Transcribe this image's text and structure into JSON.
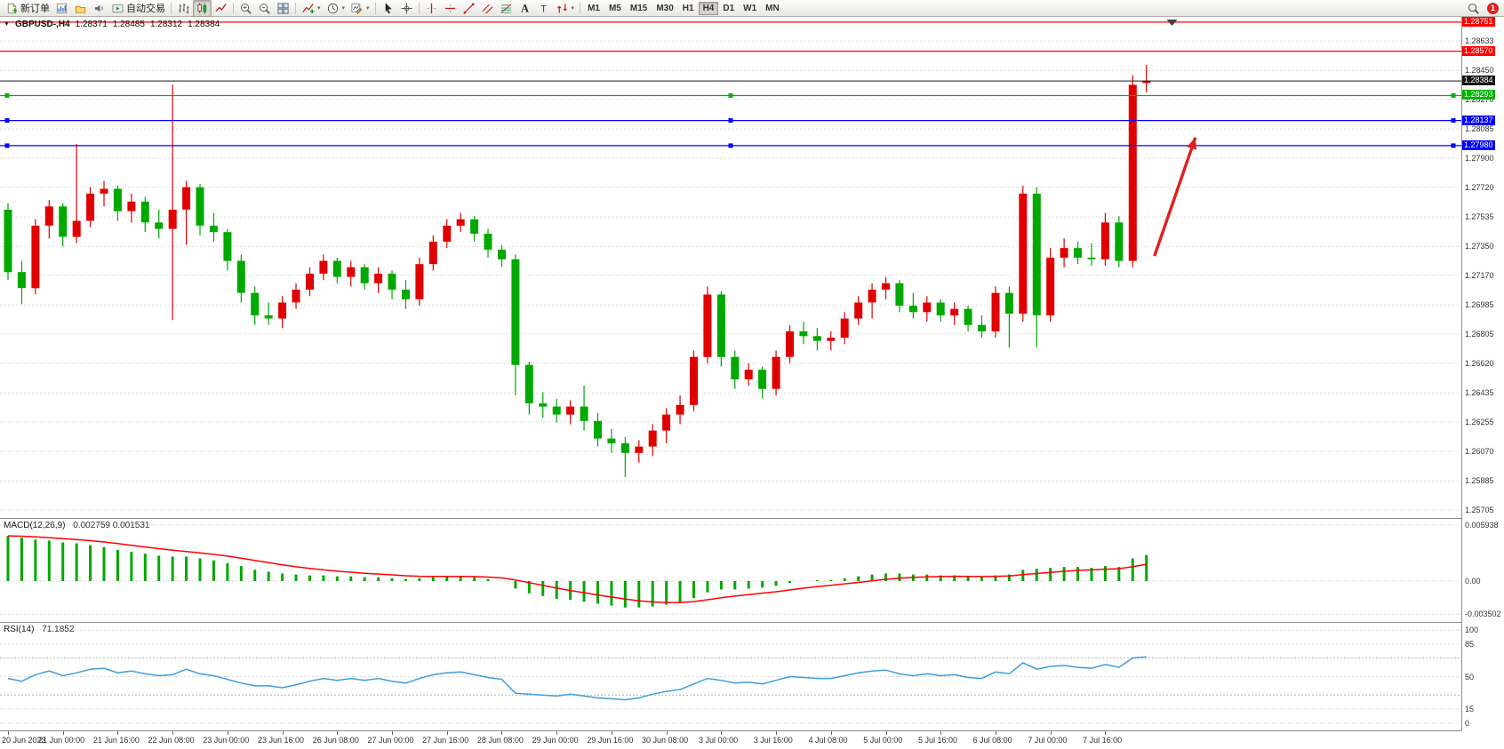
{
  "toolbar": {
    "left_items": [
      {
        "name": "new-order",
        "icon": "new-order-icon",
        "label": "新订单"
      },
      {
        "name": "charts",
        "icon": "charts-icon"
      },
      {
        "name": "profiles",
        "icon": "profiles-icon"
      },
      {
        "name": "sound-alerts",
        "icon": "sound-icon"
      },
      {
        "name": "autotrading",
        "icon": "autotrading-icon",
        "label": "自动交易"
      },
      {
        "sep": true
      },
      {
        "name": "bar-chart-mode",
        "icon": "bar-chart-icon"
      },
      {
        "name": "candlestick-mode",
        "icon": "candlestick-icon",
        "active": true
      },
      {
        "name": "line-chart-mode",
        "icon": "line-chart-icon"
      },
      {
        "sep": true
      },
      {
        "name": "zoom-in",
        "icon": "zoom-in-icon"
      },
      {
        "name": "zoom-out",
        "icon": "zoom-out-icon"
      },
      {
        "name": "tile-windows",
        "icon": "tile-windows-icon"
      },
      {
        "sep": true
      },
      {
        "name": "indicators",
        "icon": "indicators-icon",
        "caret": true
      },
      {
        "name": "periods",
        "icon": "periods-icon",
        "caret": true
      },
      {
        "name": "templates",
        "icon": "templates-icon",
        "caret": true
      },
      {
        "sep": true
      },
      {
        "name": "cursor",
        "icon": "cursor-icon"
      },
      {
        "name": "crosshair",
        "icon": "crosshair-icon"
      },
      {
        "sep": true
      },
      {
        "name": "vertical-line",
        "icon": "vertical-line-icon"
      },
      {
        "name": "horizontal-line",
        "icon": "horizontal-line-icon"
      },
      {
        "name": "trendline",
        "icon": "trendline-icon"
      },
      {
        "name": "equidistant-channel",
        "icon": "channel-icon"
      },
      {
        "name": "fibonacci",
        "icon": "fibonacci-icon"
      },
      {
        "name": "text",
        "icon": "text-icon"
      },
      {
        "name": "text-label",
        "icon": "label-icon"
      },
      {
        "name": "arrows",
        "icon": "arrows-icon",
        "caret": true
      },
      {
        "sep": true
      }
    ],
    "timeframes": [
      {
        "label": "M1"
      },
      {
        "label": "M5"
      },
      {
        "label": "M15"
      },
      {
        "label": "M30"
      },
      {
        "label": "H1"
      },
      {
        "label": "H4",
        "active": true
      },
      {
        "label": "D1"
      },
      {
        "label": "W1"
      },
      {
        "label": "MN"
      }
    ],
    "right_items": [
      {
        "name": "search",
        "icon": "magnifier-icon"
      }
    ],
    "notification_badge": "1"
  },
  "chart": {
    "symbol_period": "GBPUSD-,H4",
    "open": "1.28371",
    "high": "1.28485",
    "low": "1.28312",
    "close": "1.28384"
  },
  "chart_data": [
    {
      "type": "candlestick",
      "title": "GBPUSD-,H4",
      "timeframe": "H4",
      "up_color": "#e00000",
      "down_color": "#00a800",
      "ylim": [
        1.25654,
        1.28784
      ],
      "grid_labels": [
        "1.28633",
        "1.28450",
        "1.28270",
        "1.28085",
        "1.27900",
        "1.27720",
        "1.27535",
        "1.27350",
        "1.27170",
        "1.26985",
        "1.26805",
        "1.26620",
        "1.26435",
        "1.26255",
        "1.26070",
        "1.25885",
        "1.25705"
      ],
      "time_labels": [
        "20 Jun 2023",
        "21 Jun 00:00",
        "21 Jun 16:00",
        "22 Jun 08:00",
        "23 Jun 00:00",
        "23 Jun 16:00",
        "26 Jun 08:00",
        "27 Jun 00:00",
        "27 Jun 16:00",
        "28 Jun 08:00",
        "29 Jun 00:00",
        "29 Jun 16:00",
        "30 Jun 08:00",
        "3 Jul 00:00",
        "3 Jul 16:00",
        "4 Jul 08:00",
        "5 Jul 00:00",
        "5 Jul 16:00",
        "6 Jul 08:00",
        "7 Jul 00:00",
        "7 Jul 16:00"
      ],
      "label_step": 4,
      "price_lines": [
        {
          "price": 1.28751,
          "label": "1.28751",
          "color": "#ff0000",
          "handles": false
        },
        {
          "price": 1.2857,
          "label": "1.28570",
          "color": "#ff0000",
          "handles": false
        },
        {
          "price": 1.28384,
          "label": "1.28384",
          "color": "#101010",
          "type": "bid",
          "handles": false
        },
        {
          "price": 1.28293,
          "label": "1.28293",
          "color": "#00b400",
          "handles": true
        },
        {
          "price": 1.28137,
          "label": "1.28137",
          "color": "#0000ff",
          "handles": true
        },
        {
          "price": 1.2798,
          "label": "1.27980",
          "color": "#0000ff",
          "handles": true
        }
      ],
      "annotations": [
        {
          "type": "arrow",
          "color": "#e02020",
          "x1_frac": 0.79,
          "y1_price": 1.2729,
          "x2_frac": 0.818,
          "y2_price": 1.2803
        }
      ],
      "shift_marker_x_frac": 0.802,
      "candles": [
        [
          1.2758,
          1.2762,
          1.2714,
          1.2719
        ],
        [
          1.2719,
          1.2726,
          1.2699,
          1.2709
        ],
        [
          1.2709,
          1.2752,
          1.2705,
          1.2748
        ],
        [
          1.2748,
          1.2764,
          1.274,
          1.276
        ],
        [
          1.276,
          1.2762,
          1.2735,
          1.2741
        ],
        [
          1.2741,
          1.2799,
          1.2737,
          1.2751
        ],
        [
          1.2751,
          1.2772,
          1.2747,
          1.2768
        ],
        [
          1.2768,
          1.2776,
          1.276,
          1.2771
        ],
        [
          1.2771,
          1.2773,
          1.2751,
          1.2757
        ],
        [
          1.2757,
          1.2768,
          1.275,
          1.2763
        ],
        [
          1.2763,
          1.2766,
          1.2744,
          1.275
        ],
        [
          1.275,
          1.2758,
          1.274,
          1.2746
        ],
        [
          1.2746,
          1.2836,
          1.2689,
          1.2758
        ],
        [
          1.2758,
          1.2776,
          1.2736,
          1.2772
        ],
        [
          1.2772,
          1.2774,
          1.2742,
          1.2748
        ],
        [
          1.2748,
          1.2756,
          1.2738,
          1.2744
        ],
        [
          1.2744,
          1.2746,
          1.272,
          1.2726
        ],
        [
          1.2726,
          1.273,
          1.27,
          1.2706
        ],
        [
          1.2706,
          1.271,
          1.2686,
          1.2692
        ],
        [
          1.2692,
          1.27,
          1.2686,
          1.269
        ],
        [
          1.269,
          1.2704,
          1.2684,
          1.27
        ],
        [
          1.27,
          1.2712,
          1.2696,
          1.2708
        ],
        [
          1.2708,
          1.2722,
          1.2704,
          1.2718
        ],
        [
          1.2718,
          1.273,
          1.2714,
          1.2726
        ],
        [
          1.2726,
          1.2728,
          1.2712,
          1.2716
        ],
        [
          1.2716,
          1.2726,
          1.271,
          1.2722
        ],
        [
          1.2722,
          1.2724,
          1.2708,
          1.2712
        ],
        [
          1.2712,
          1.2722,
          1.2706,
          1.2718
        ],
        [
          1.2718,
          1.272,
          1.2702,
          1.2708
        ],
        [
          1.2708,
          1.2714,
          1.2696,
          1.2702
        ],
        [
          1.2702,
          1.2728,
          1.2698,
          1.2724
        ],
        [
          1.2724,
          1.2742,
          1.272,
          1.2738
        ],
        [
          1.2738,
          1.2752,
          1.2734,
          1.2748
        ],
        [
          1.2748,
          1.2756,
          1.2744,
          1.2752
        ],
        [
          1.2752,
          1.2754,
          1.2738,
          1.2743
        ],
        [
          1.2743,
          1.2746,
          1.2728,
          1.2733
        ],
        [
          1.2733,
          1.2736,
          1.2722,
          1.2727
        ],
        [
          1.2727,
          1.273,
          1.2642,
          1.2661
        ],
        [
          1.2661,
          1.2663,
          1.263,
          1.2637
        ],
        [
          1.2637,
          1.2644,
          1.2628,
          1.2635
        ],
        [
          1.2635,
          1.264,
          1.2625,
          1.263
        ],
        [
          1.263,
          1.2639,
          1.2624,
          1.2635
        ],
        [
          1.2635,
          1.2648,
          1.262,
          1.2626
        ],
        [
          1.2626,
          1.2631,
          1.261,
          1.2615
        ],
        [
          1.2615,
          1.2621,
          1.2606,
          1.2612
        ],
        [
          1.2612,
          1.2616,
          1.2591,
          1.2606
        ],
        [
          1.2606,
          1.2614,
          1.26,
          1.261
        ],
        [
          1.261,
          1.2624,
          1.2604,
          1.262
        ],
        [
          1.262,
          1.2634,
          1.2612,
          1.263
        ],
        [
          1.263,
          1.2642,
          1.2624,
          1.2636
        ],
        [
          1.2636,
          1.267,
          1.2632,
          1.2666
        ],
        [
          1.2666,
          1.271,
          1.2662,
          1.2705
        ],
        [
          1.2705,
          1.2707,
          1.266,
          1.2666
        ],
        [
          1.2666,
          1.267,
          1.2646,
          1.2652
        ],
        [
          1.2652,
          1.2662,
          1.2648,
          1.2658
        ],
        [
          1.2658,
          1.266,
          1.264,
          1.2646
        ],
        [
          1.2646,
          1.267,
          1.2642,
          1.2666
        ],
        [
          1.2666,
          1.2686,
          1.2662,
          1.2682
        ],
        [
          1.2682,
          1.2688,
          1.2674,
          1.2679
        ],
        [
          1.2679,
          1.2684,
          1.267,
          1.2676
        ],
        [
          1.2676,
          1.2682,
          1.267,
          1.2678
        ],
        [
          1.2678,
          1.2694,
          1.2674,
          1.269
        ],
        [
          1.269,
          1.2704,
          1.2686,
          1.27
        ],
        [
          1.27,
          1.2712,
          1.269,
          1.2708
        ],
        [
          1.2708,
          1.2716,
          1.2702,
          1.2712
        ],
        [
          1.2712,
          1.2714,
          1.2694,
          1.2698
        ],
        [
          1.2698,
          1.2706,
          1.269,
          1.2694
        ],
        [
          1.2694,
          1.2704,
          1.2688,
          1.27
        ],
        [
          1.27,
          1.2702,
          1.2688,
          1.2692
        ],
        [
          1.2692,
          1.27,
          1.2686,
          1.2696
        ],
        [
          1.2696,
          1.2698,
          1.2682,
          1.2686
        ],
        [
          1.2686,
          1.2692,
          1.2678,
          1.2682
        ],
        [
          1.2682,
          1.271,
          1.2678,
          1.2706
        ],
        [
          1.2706,
          1.271,
          1.2672,
          1.2693
        ],
        [
          1.2693,
          1.2773,
          1.2688,
          1.2768
        ],
        [
          1.2768,
          1.2772,
          1.2672,
          1.2692
        ],
        [
          1.2692,
          1.2734,
          1.2688,
          1.2728
        ],
        [
          1.2728,
          1.274,
          1.2722,
          1.2734
        ],
        [
          1.2734,
          1.2738,
          1.2724,
          1.2728
        ],
        [
          1.2728,
          1.2737,
          1.2723,
          1.2727
        ],
        [
          1.2727,
          1.2756,
          1.2723,
          1.275
        ],
        [
          1.275,
          1.2754,
          1.2722,
          1.2726
        ],
        [
          1.2726,
          1.2842,
          1.2722,
          1.2836
        ],
        [
          1.28371,
          1.28485,
          1.28312,
          1.28384
        ]
      ]
    },
    {
      "type": "line+histogram",
      "title": "MACD(12,26,9)",
      "values_label": "0.002759 0.001531",
      "hist_color": "#00a800",
      "line_color": "#ff0000",
      "ylim": [
        -0.00434,
        0.0066
      ],
      "signal_period": 9,
      "y_labels": [
        {
          "v": 0.005938,
          "t": "0.005938"
        },
        {
          "v": 0,
          "t": "0.00"
        },
        {
          "v": -0.003502,
          "t": "-0.003502"
        }
      ],
      "histogram": [
        0.0048,
        0.0046,
        0.0044,
        0.0043,
        0.0041,
        0.004,
        0.0038,
        0.0036,
        0.0033,
        0.0031,
        0.0029,
        0.0027,
        0.0026,
        0.0026,
        0.0024,
        0.0022,
        0.0019,
        0.0016,
        0.0012,
        0.001,
        0.0008,
        0.0007,
        0.0006,
        0.0006,
        0.0005,
        0.0005,
        0.0004,
        0.0004,
        0.0003,
        0.0002,
        0.0003,
        0.0004,
        0.0005,
        0.0005,
        0.0004,
        0.0002,
        0.0,
        -0.0008,
        -0.0013,
        -0.0016,
        -0.0019,
        -0.002,
        -0.0022,
        -0.0024,
        -0.0026,
        -0.0028,
        -0.0028,
        -0.0027,
        -0.0025,
        -0.0023,
        -0.0018,
        -0.0012,
        -0.0009,
        -0.0009,
        -0.0008,
        -0.0007,
        -0.0005,
        -0.0002,
        0.0,
        0.0001,
        0.0001,
        0.0003,
        0.0005,
        0.0007,
        0.0008,
        0.0008,
        0.0007,
        0.0007,
        0.0006,
        0.0006,
        0.0005,
        0.0004,
        0.0006,
        0.0007,
        0.0012,
        0.0013,
        0.0014,
        0.0015,
        0.0015,
        0.0014,
        0.0016,
        0.0015,
        0.0024,
        0.002759
      ]
    },
    {
      "type": "line",
      "title": "RSI(14)",
      "values_label": "71.1852",
      "line_color": "#3e9ddd",
      "ylim": [
        -8,
        108
      ],
      "levels": [
        70,
        30
      ],
      "y_labels": [
        {
          "v": 100,
          "t": "100"
        },
        {
          "v": 85,
          "t": "85"
        },
        {
          "v": 50,
          "t": "50"
        },
        {
          "v": 15,
          "t": "15"
        },
        {
          "v": 0,
          "t": "0"
        }
      ],
      "values": [
        48,
        45,
        52,
        56,
        51,
        54,
        58,
        59,
        54,
        56,
        53,
        51,
        52,
        58,
        53,
        51,
        47,
        43,
        40,
        40,
        38,
        41,
        45,
        48,
        46,
        48,
        46,
        48,
        45,
        43,
        48,
        52,
        54,
        55,
        52,
        49,
        47,
        32,
        31,
        30,
        29,
        31,
        29,
        27,
        26,
        25,
        27,
        31,
        34,
        36,
        42,
        48,
        46,
        43,
        44,
        42,
        46,
        50,
        49,
        48,
        48,
        51,
        54,
        56,
        57,
        53,
        51,
        53,
        51,
        52,
        49,
        48,
        55,
        53,
        65,
        58,
        61,
        62,
        60,
        59,
        63,
        60,
        70,
        71.1852
      ]
    }
  ]
}
